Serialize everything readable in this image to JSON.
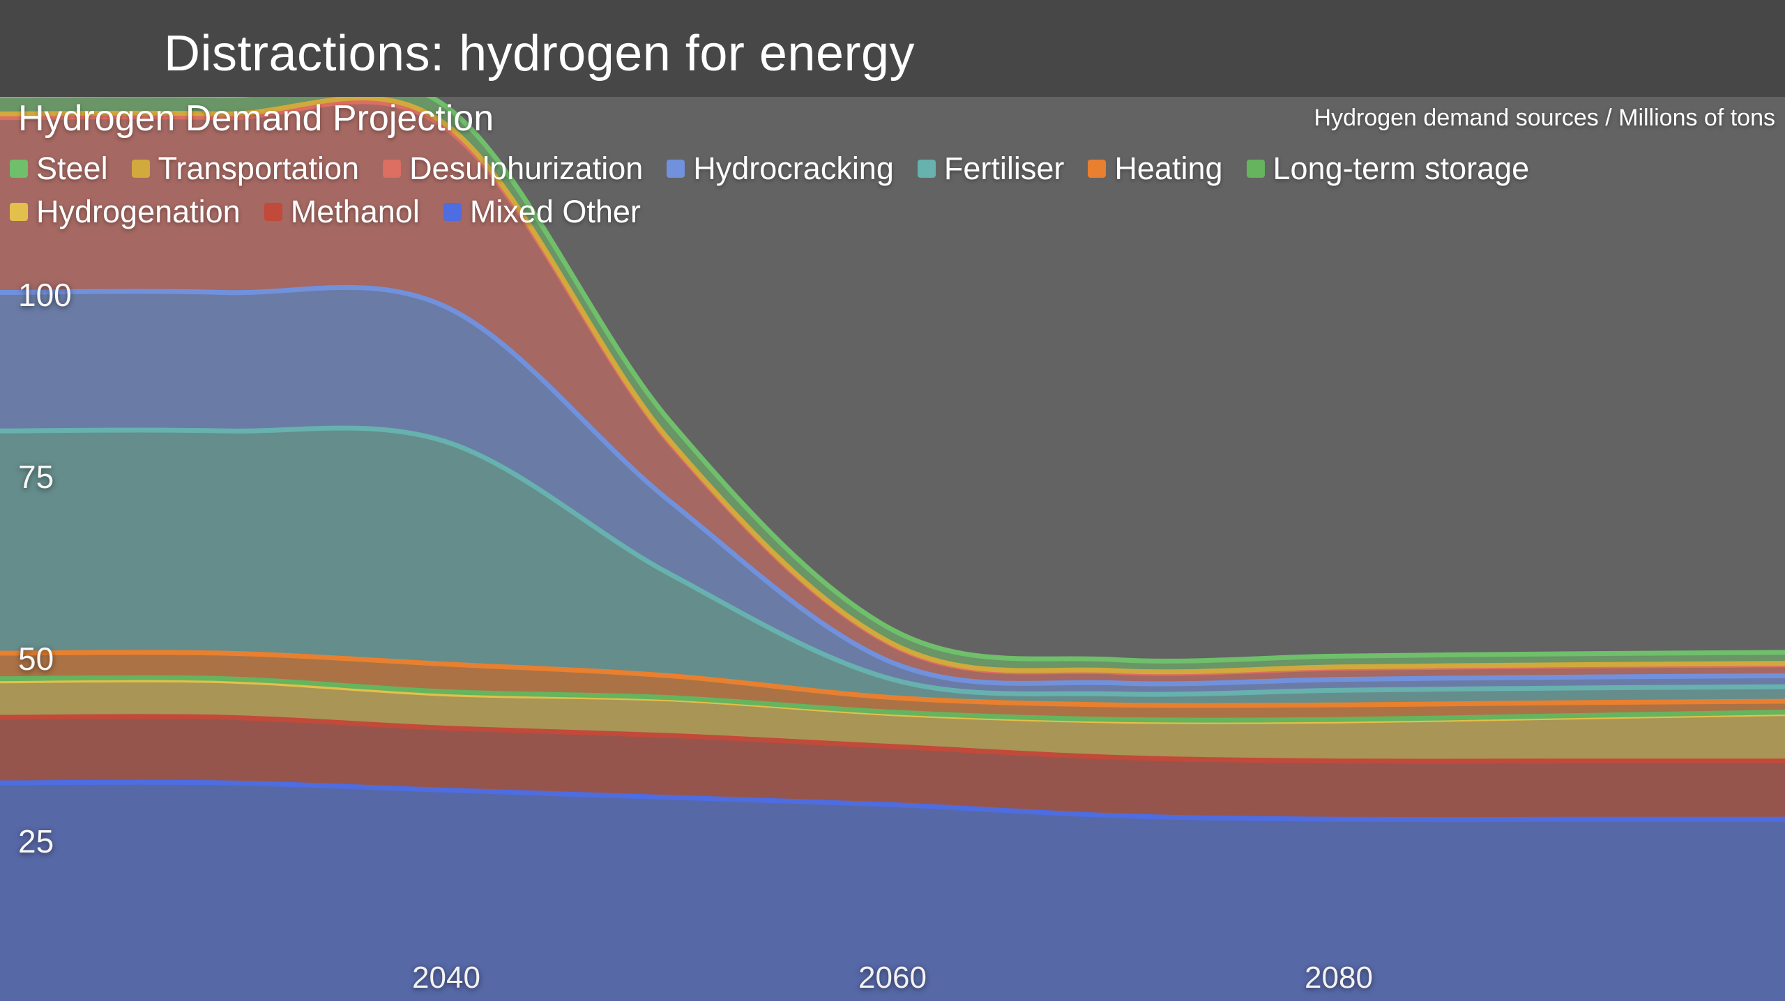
{
  "slide": {
    "title": "Distractions: hydrogen for energy"
  },
  "chart": {
    "title": "Hydrogen Demand Projection",
    "units_label": "Hydrogen demand sources / Millions of tons"
  },
  "theme": {
    "header_background": "#474747",
    "chart_background": "#636363",
    "text_color": "#ffffff"
  },
  "chart_data": {
    "type": "area",
    "stacked": true,
    "title": "Hydrogen Demand Projection",
    "subtitle": "Hydrogen demand sources / Millions of tons",
    "legend_position": "top",
    "grid": false,
    "x_range": [
      2020,
      2100
    ],
    "x": [
      2020,
      2030,
      2040,
      2050,
      2060,
      2070,
      2080,
      2090,
      2100
    ],
    "x_ticks": [
      2040,
      2060,
      2080
    ],
    "y_ticks": [
      100,
      75,
      50,
      25
    ],
    "y_baseline": 0,
    "ylim_visible": [
      9,
      127
    ],
    "stack_note": "stacked bottom-to-top in reverse legend order (Mixed Other at bottom, Steel on top)",
    "series": [
      {
        "name": "Steel",
        "color": "#6fbf6b",
        "values": [
          2.5,
          2.5,
          2.5,
          2.7,
          1.9,
          1.5,
          1.5,
          1.5,
          1.5
        ]
      },
      {
        "name": "Transportation",
        "color": "#d2a93c",
        "values": [
          0.5,
          0.5,
          0.5,
          0.3,
          0.2,
          0.2,
          0.2,
          0.2,
          0.2
        ]
      },
      {
        "name": "Desulphurization",
        "color": "#dc6e62",
        "values": [
          24,
          24,
          24.5,
          8,
          2.4,
          1.5,
          1.5,
          1.5,
          1.5
        ]
      },
      {
        "name": "Hydrocracking",
        "color": "#7191dd",
        "values": [
          19,
          19,
          18.5,
          10,
          2.3,
          1.5,
          1.5,
          1.5,
          1.5
        ]
      },
      {
        "name": "Fertiliser",
        "color": "#67b1ae",
        "values": [
          30.5,
          30.5,
          30.5,
          14,
          2.5,
          1.5,
          2,
          2,
          2
        ]
      },
      {
        "name": "Heating",
        "color": "#e8802f",
        "values": [
          3.5,
          3.5,
          3.8,
          3,
          2,
          2,
          2,
          1.8,
          1.5
        ]
      },
      {
        "name": "Long-term storage",
        "color": "#66b45e",
        "values": [
          0.3,
          0.3,
          0.3,
          0.2,
          0.2,
          0.2,
          0.2,
          0.2,
          0.2
        ]
      },
      {
        "name": "Hydrogenation",
        "color": "#e3c04b",
        "values": [
          5,
          5,
          4.7,
          5,
          4.5,
          5,
          5.5,
          6,
          6.5
        ]
      },
      {
        "name": "Methanol",
        "color": "#c14a3a",
        "values": [
          9,
          9,
          8.5,
          8.5,
          8,
          8,
          8,
          8,
          8
        ]
      },
      {
        "name": "Mixed Other",
        "color": "#4e6de0",
        "values": [
          33,
          33,
          32,
          31,
          30,
          28.5,
          28,
          28,
          28
        ]
      }
    ]
  }
}
